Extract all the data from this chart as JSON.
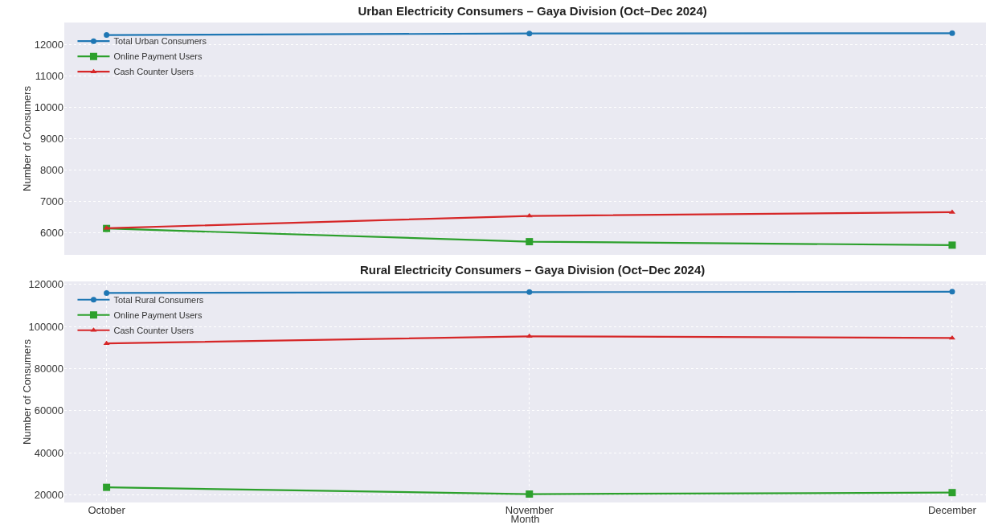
{
  "chart_data": [
    {
      "type": "line",
      "title": "Urban Electricity Consumers – Gaya Division (Oct–Dec 2024)",
      "ylabel": "Number of Consumers",
      "categories": [
        null,
        null,
        null
      ],
      "series": [
        {
          "name": "Total Urban Consumers",
          "color": "#1f77b4",
          "marker": "circle",
          "values": [
            12300,
            12350,
            12360
          ]
        },
        {
          "name": "Online Payment Users",
          "color": "#2ca02c",
          "marker": "square",
          "values": [
            6140,
            5720,
            5610
          ]
        },
        {
          "name": "Cash Counter Users",
          "color": "#d62728",
          "marker": "triangle",
          "values": [
            6150,
            6540,
            6660
          ]
        }
      ],
      "ylim": [
        5300,
        12700
      ],
      "yticks": [
        6000,
        7000,
        8000,
        9000,
        10000,
        11000,
        12000
      ],
      "grid": true,
      "legend": "top left",
      "line_style": "solid"
    },
    {
      "type": "line",
      "title": "Rural Electricity Consumers – Gaya Division (Oct–Dec 2024)",
      "xlabel": "Month",
      "ylabel": "Number of Consumers",
      "categories": [
        "October",
        "November",
        "December"
      ],
      "series": [
        {
          "name": "Total Rural Consumers",
          "color": "#1f77b4",
          "marker": "circle",
          "values": [
            116000,
            116400,
            116600
          ]
        },
        {
          "name": "Online Payment Users",
          "color": "#2ca02c",
          "marker": "square",
          "values": [
            23600,
            20400,
            21100
          ]
        },
        {
          "name": "Cash Counter Users",
          "color": "#d62728",
          "marker": "triangle",
          "values": [
            92000,
            95400,
            94600
          ]
        }
      ],
      "ylim": [
        16400,
        121500
      ],
      "yticks": [
        20000,
        40000,
        60000,
        80000,
        100000,
        120000
      ],
      "grid": true,
      "legend": "top left",
      "line_style": "solid"
    }
  ]
}
